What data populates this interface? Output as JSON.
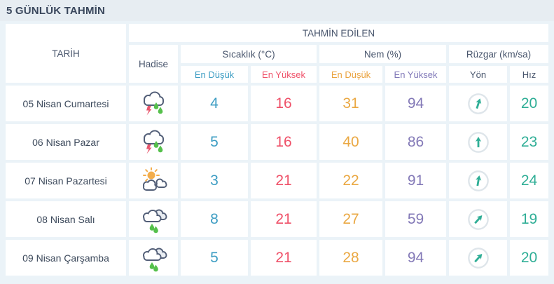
{
  "title": "5 GÜNLÜK TAHMİN",
  "table": {
    "col_date": "TARİH",
    "col_predicted": "TAHMİN EDİLEN",
    "col_condition": "Hadise",
    "col_temperature": "Sıcaklık (°C)",
    "col_humidity": "Nem (%)",
    "col_wind": "Rüzgar (km/sa)",
    "sub_temp_min": "En Düşük",
    "sub_temp_max": "En Yüksek",
    "sub_hum_min": "En Düşük",
    "sub_hum_max": "En Yüksek",
    "sub_wind_dir": "Yön",
    "sub_wind_speed": "Hız"
  },
  "rows": [
    {
      "date": "05 Nisan Cumartesi",
      "icon": "thunderstorm",
      "temp_min": "4",
      "temp_max": "16",
      "hum_min": "31",
      "hum_max": "94",
      "wind_dir_deg": 18,
      "wind_speed": "20"
    },
    {
      "date": "06 Nisan Pazar",
      "icon": "thunderstorm",
      "temp_min": "5",
      "temp_max": "16",
      "hum_min": "40",
      "hum_max": "86",
      "wind_dir_deg": 0,
      "wind_speed": "23"
    },
    {
      "date": "07 Nisan Pazartesi",
      "icon": "partly-cloudy",
      "temp_min": "3",
      "temp_max": "21",
      "hum_min": "22",
      "hum_max": "91",
      "wind_dir_deg": 10,
      "wind_speed": "24"
    },
    {
      "date": "08 Nisan Salı",
      "icon": "rainy",
      "temp_min": "8",
      "temp_max": "21",
      "hum_min": "27",
      "hum_max": "59",
      "wind_dir_deg": 42,
      "wind_speed": "19"
    },
    {
      "date": "09 Nisan Çarşamba",
      "icon": "rainy",
      "temp_min": "5",
      "temp_max": "21",
      "hum_min": "28",
      "hum_max": "94",
      "wind_dir_deg": 42,
      "wind_speed": "20"
    }
  ],
  "colors": {
    "title_text": "#3a475c",
    "header_text": "#48556c",
    "temp_min": "#3d9dc3",
    "temp_max": "#ef5068",
    "humidity_min": "#eaa843",
    "humidity_max": "#8379b7",
    "wind": "#2fae96",
    "cell_bg": "#ffffff",
    "page_bg": "#ebf3f8",
    "titlebar_bg": "#e7edf2"
  }
}
